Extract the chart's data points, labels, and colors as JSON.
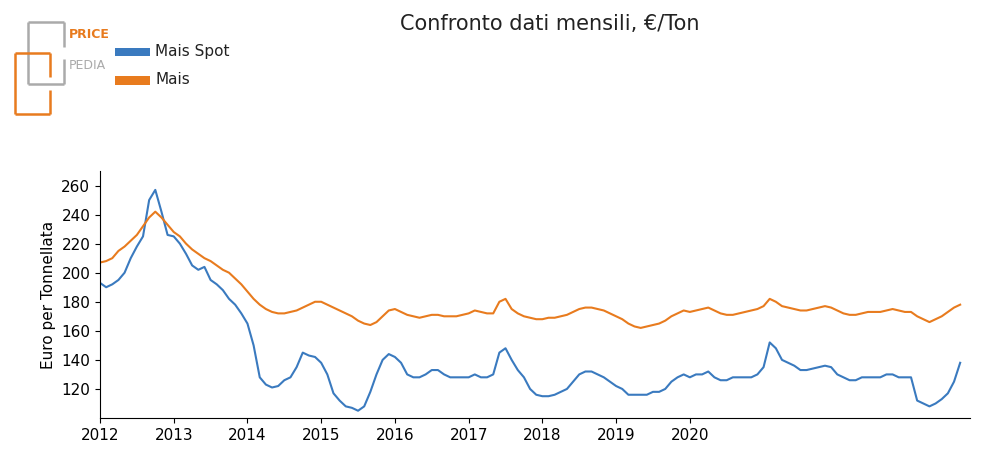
{
  "title": "Confronto dati mensili, €/Ton",
  "ylabel": "Euro per Tonnellata",
  "line1_label": "Mais Spot",
  "line2_label": "Mais",
  "line1_color": "#3a7abf",
  "line2_color": "#e87b1e",
  "background_color": "#ffffff",
  "ylim": [
    100,
    270
  ],
  "yticks": [
    120,
    140,
    160,
    180,
    200,
    220,
    240,
    260
  ],
  "mais_spot": [
    193,
    190,
    192,
    195,
    200,
    210,
    218,
    225,
    250,
    257,
    242,
    226,
    225,
    220,
    213,
    205,
    202,
    204,
    195,
    192,
    188,
    182,
    178,
    172,
    165,
    150,
    128,
    123,
    121,
    122,
    126,
    128,
    135,
    145,
    143,
    142,
    138,
    130,
    117,
    112,
    108,
    107,
    105,
    108,
    118,
    130,
    140,
    144,
    142,
    138,
    130,
    128,
    128,
    130,
    133,
    133,
    130,
    128,
    128,
    128,
    128,
    130,
    128,
    128,
    130,
    145,
    148,
    140,
    133,
    128,
    120,
    116,
    115,
    115,
    116,
    118,
    120,
    125,
    130,
    132,
    132,
    130,
    128,
    125,
    122,
    120,
    116,
    116,
    116,
    116,
    118,
    118,
    120,
    125,
    128,
    130,
    128,
    130,
    130,
    132,
    128,
    126,
    126,
    128,
    128,
    128,
    128,
    130,
    135,
    152,
    148,
    140,
    138,
    136,
    133,
    133,
    134,
    135,
    136,
    135,
    130,
    128,
    126,
    126,
    128,
    128,
    128,
    128,
    130,
    130,
    128,
    128,
    128,
    112,
    110,
    108,
    110,
    113,
    117,
    125,
    138
  ],
  "mais": [
    207,
    208,
    210,
    215,
    218,
    222,
    226,
    232,
    238,
    242,
    238,
    233,
    228,
    225,
    220,
    216,
    213,
    210,
    208,
    205,
    202,
    200,
    196,
    192,
    187,
    182,
    178,
    175,
    173,
    172,
    172,
    173,
    174,
    176,
    178,
    180,
    180,
    178,
    176,
    174,
    172,
    170,
    167,
    165,
    164,
    166,
    170,
    174,
    175,
    173,
    171,
    170,
    169,
    170,
    171,
    171,
    170,
    170,
    170,
    171,
    172,
    174,
    173,
    172,
    172,
    180,
    182,
    175,
    172,
    170,
    169,
    168,
    168,
    169,
    169,
    170,
    171,
    173,
    175,
    176,
    176,
    175,
    174,
    172,
    170,
    168,
    165,
    163,
    162,
    163,
    164,
    165,
    167,
    170,
    172,
    174,
    173,
    174,
    175,
    176,
    174,
    172,
    171,
    171,
    172,
    173,
    174,
    175,
    177,
    182,
    180,
    177,
    176,
    175,
    174,
    174,
    175,
    176,
    177,
    176,
    174,
    172,
    171,
    171,
    172,
    173,
    173,
    173,
    174,
    175,
    174,
    173,
    173,
    170,
    168,
    166,
    168,
    170,
    173,
    176,
    178
  ],
  "n_points": 141,
  "x_start_year": 2012,
  "xticks": [
    2012,
    2013,
    2014,
    2015,
    2016,
    2017,
    2018,
    2019,
    2020
  ],
  "title_fontsize": 15,
  "label_fontsize": 11,
  "tick_fontsize": 11,
  "legend_fontsize": 11
}
